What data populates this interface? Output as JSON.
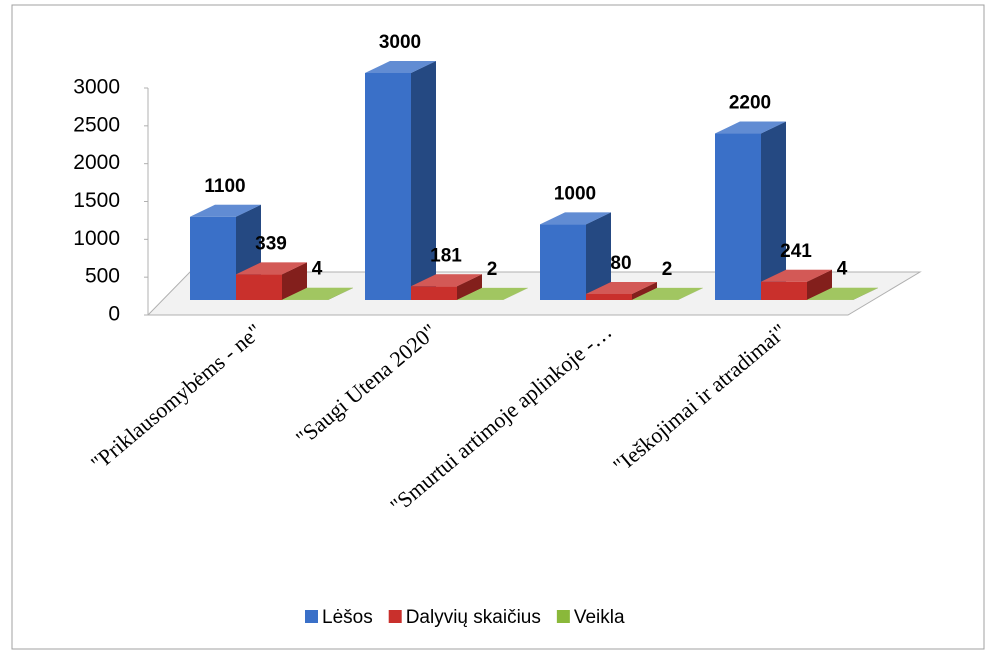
{
  "chart_data": {
    "type": "bar3d",
    "categories": [
      "\"Priklausomybėms - ne\"",
      "\"Saugi Utena 2020\"",
      "\"Smurtui artimoje aplinkoje -…",
      "\"Ieškojimai ir atradimai\""
    ],
    "series": [
      {
        "name": "Lėšos",
        "color": "#3a70c8",
        "values": [
          1100,
          3000,
          1000,
          2200
        ]
      },
      {
        "name": "Dalyvių skaičius",
        "color": "#c9302c",
        "values": [
          339,
          181,
          80,
          241
        ]
      },
      {
        "name": "Veikla",
        "color": "#8ab83a",
        "values": [
          4,
          2,
          2,
          4
        ]
      }
    ],
    "ylim": [
      0,
      3000
    ],
    "yticks": [
      0,
      500,
      1000,
      1500,
      2000,
      2500,
      3000
    ],
    "legend": "bottom"
  }
}
